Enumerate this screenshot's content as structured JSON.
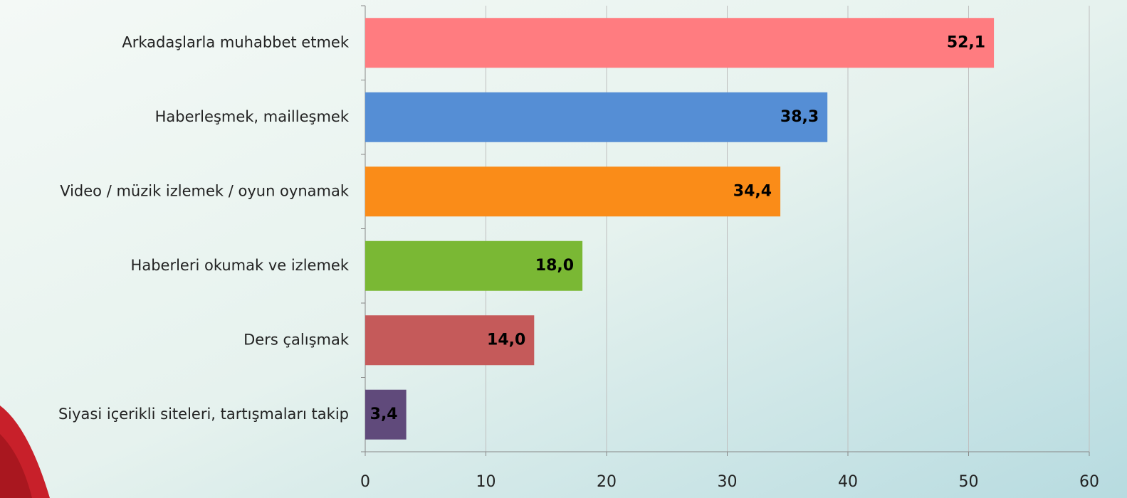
{
  "chart_data": {
    "type": "hbar",
    "categories": [
      "Arkadaşlarla muhabbet etmek",
      "Haberleşmek, mailleşmek",
      "Video / müzik izlemek / oyun oynamak",
      "Haberleri okumak ve izlemek",
      "Ders çalışmak",
      "Siyasi içerikli siteleri, tartışmaları takip"
    ],
    "values": [
      52.1,
      38.3,
      34.4,
      18.0,
      14.0,
      3.4
    ],
    "value_labels": [
      "52,1",
      "38,3",
      "34,4",
      "18,0",
      "14,0",
      "3,4"
    ],
    "colors": [
      "#ff7c80",
      "#558ed5",
      "#fa8c18",
      "#7ab834",
      "#c55a5a",
      "#604a7b"
    ],
    "xlim": [
      0,
      60
    ],
    "xticks": [
      0,
      10,
      20,
      30,
      40,
      50,
      60
    ],
    "grid": true
  }
}
